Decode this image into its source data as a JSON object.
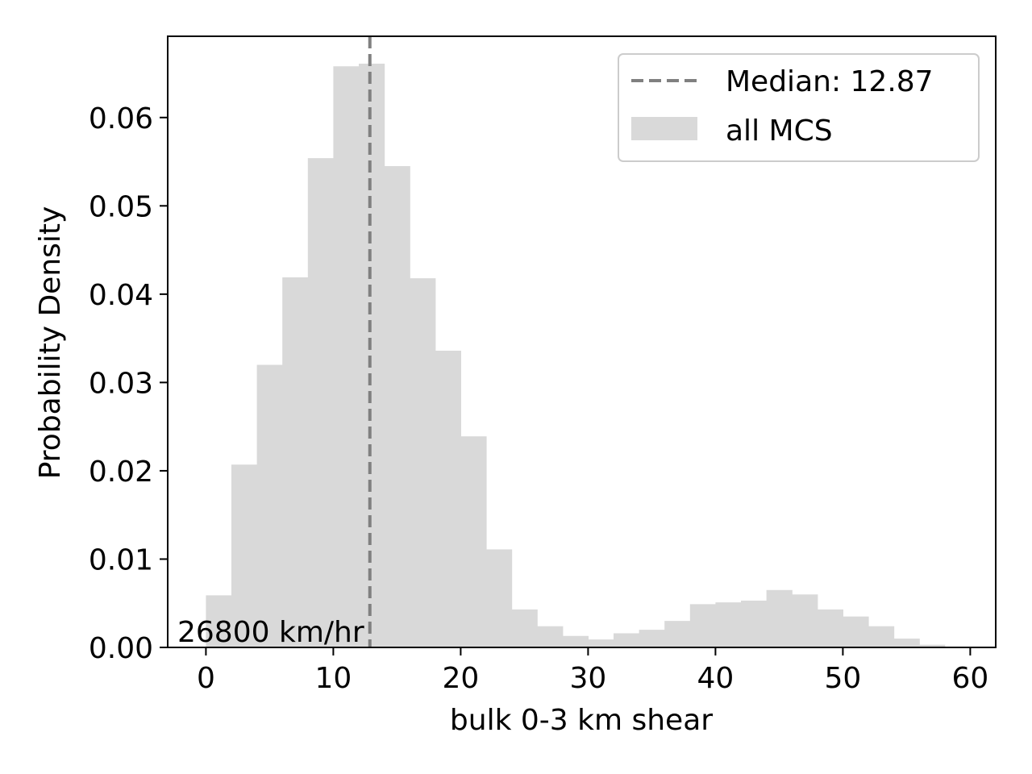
{
  "chart_data": {
    "type": "bar",
    "subtype": "histogram",
    "xlabel": "bulk 0-3 km shear",
    "ylabel": "Probability Density",
    "xlim": [
      -3,
      62
    ],
    "ylim": [
      0,
      0.0692
    ],
    "xticks": [
      0,
      10,
      20,
      30,
      40,
      50,
      60
    ],
    "xtick_labels": [
      "0",
      "10",
      "20",
      "30",
      "40",
      "50",
      "60"
    ],
    "yticks": [
      0,
      0.01,
      0.02,
      0.03,
      0.04,
      0.05,
      0.06
    ],
    "ytick_labels": [
      "0.00",
      "0.01",
      "0.02",
      "0.03",
      "0.04",
      "0.05",
      "0.06"
    ],
    "bin_edges": [
      0,
      2,
      4,
      6,
      8,
      10,
      12,
      14,
      16,
      18,
      20,
      22,
      24,
      26,
      28,
      30,
      32,
      34,
      36,
      38,
      40,
      42,
      44,
      46,
      48,
      50,
      52,
      54,
      56,
      58
    ],
    "series": [
      {
        "name": "all MCS",
        "color": "#d9d9d9",
        "values": [
          0.0059,
          0.0207,
          0.032,
          0.0419,
          0.0554,
          0.0658,
          0.0661,
          0.0545,
          0.0418,
          0.0336,
          0.0239,
          0.0111,
          0.0043,
          0.0024,
          0.0013,
          0.0009,
          0.0016,
          0.002,
          0.003,
          0.0049,
          0.0051,
          0.0053,
          0.0065,
          0.006,
          0.0043,
          0.0035,
          0.0024,
          0.001,
          0.0003
        ]
      }
    ],
    "median": {
      "value": 12.87,
      "label": "Median: 12.87",
      "color": "#808080",
      "style": "dashed"
    },
    "annotation": "26800 km/hr",
    "legend": {
      "position": "top-right",
      "entries": [
        "Median: 12.87",
        "all MCS"
      ]
    },
    "grid": false
  }
}
